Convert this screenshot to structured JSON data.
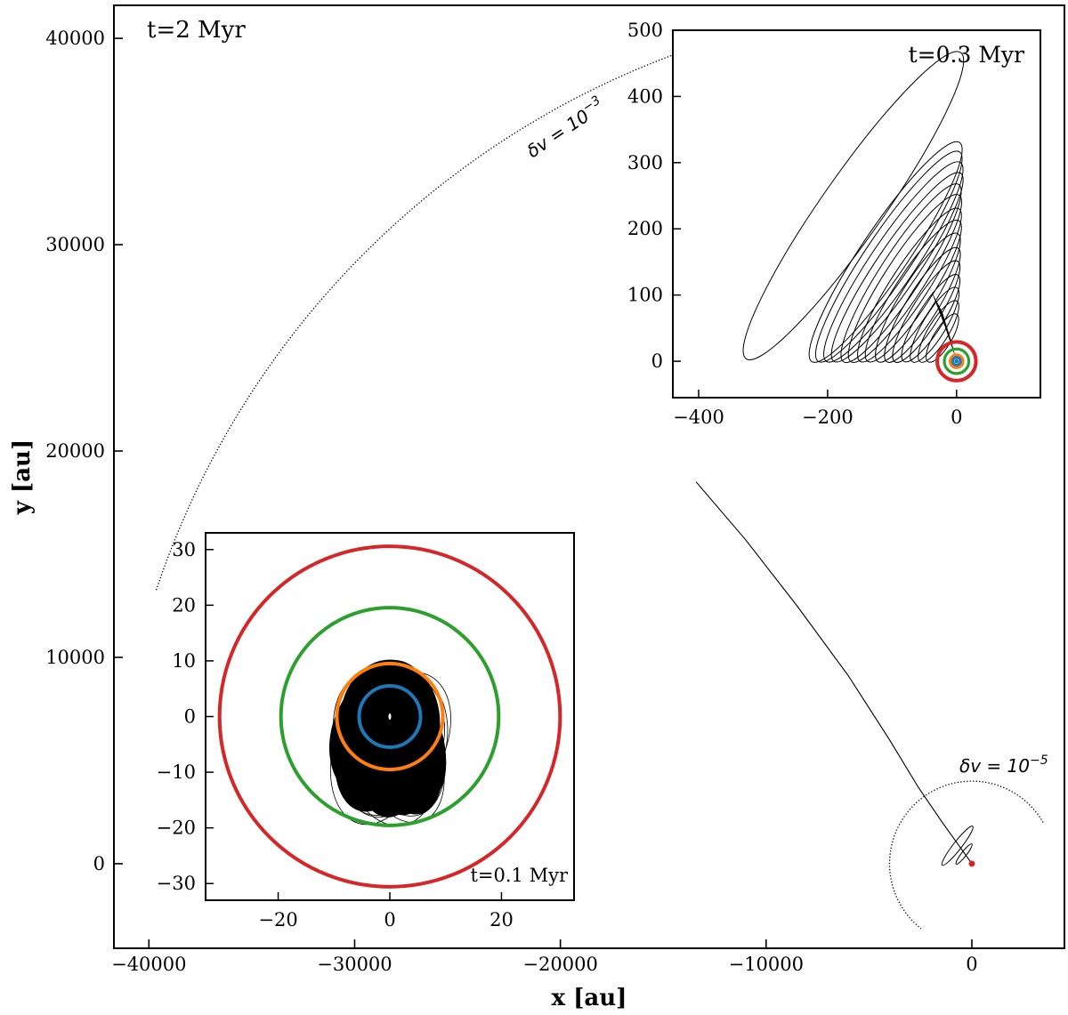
{
  "chart_data": [
    {
      "type": "line",
      "panel": "main",
      "annotation": "t=2 Myr",
      "xlabel": "x [au]",
      "ylabel": "y [au]",
      "xlim": [
        -41700,
        4500
      ],
      "ylim": [
        -4100,
        41600
      ],
      "xticks": [
        -40000,
        -30000,
        -20000,
        -10000,
        0
      ],
      "xtick_labels": [
        "−40000",
        "−30000",
        "−20000",
        "−10000",
        "0"
      ],
      "yticks": [
        0,
        10000,
        20000,
        30000,
        40000
      ],
      "ytick_labels": [
        "0",
        "10000",
        "20000",
        "30000",
        "40000"
      ],
      "dv_large_label": "δv = 10",
      "dv_large_exp": "−3",
      "dv_small_label": "δv = 10",
      "dv_small_exp": "−5",
      "dotted_arc_large": {
        "center": [
          0,
          0
        ],
        "radius": 41800,
        "theta_deg": [
          108.8,
          161.5
        ]
      },
      "dotted_arc_small": {
        "center": [
          0,
          0
        ],
        "radius": 4000,
        "theta_deg": [
          30,
          232
        ]
      },
      "escape_track": [
        [
          -13400,
          18500
        ],
        [
          -11000,
          15700
        ],
        [
          -8500,
          12500
        ],
        [
          -6000,
          9100
        ],
        [
          -4000,
          6000
        ],
        [
          -2600,
          3700
        ],
        [
          -1400,
          1950
        ],
        [
          -500,
          700
        ],
        [
          0,
          0
        ]
      ],
      "loop_outer": {
        "center": [
          -700,
          870
        ],
        "a": 1200,
        "b": 200,
        "angle_deg": -52
      },
      "loop_inner": {
        "center": [
          -380,
          470
        ],
        "a": 620,
        "b": 120,
        "angle_deg": -52
      },
      "origin_color": "#d62728"
    },
    {
      "type": "line",
      "panel": "inset_top",
      "annotation": "t=0.3 Myr",
      "xlim": [
        -440,
        130
      ],
      "ylim": [
        -55,
        500
      ],
      "xticks": [
        -400,
        -200,
        0
      ],
      "xtick_labels": [
        "−400",
        "−200",
        "0"
      ],
      "yticks": [
        0,
        100,
        200,
        300,
        400,
        500
      ],
      "ytick_labels": [
        "0",
        "100",
        "200",
        "300",
        "400",
        "500"
      ],
      "big_orbit": {
        "center": [
          -160,
          235
        ],
        "a": 290,
        "b": 48,
        "angle_deg": -55
      },
      "orbit_family": [
        {
          "center": [
            -110,
            165
          ],
          "a": 205,
          "b": 37,
          "angle_deg": -56
        },
        {
          "center": [
            -105,
            158
          ],
          "a": 196,
          "b": 36,
          "angle_deg": -56
        },
        {
          "center": [
            -98,
            150
          ],
          "a": 186,
          "b": 35,
          "angle_deg": -56
        },
        {
          "center": [
            -92,
            142
          ],
          "a": 176,
          "b": 33,
          "angle_deg": -56
        },
        {
          "center": [
            -86,
            133
          ],
          "a": 164,
          "b": 32,
          "angle_deg": -57
        },
        {
          "center": [
            -80,
            125
          ],
          "a": 154,
          "b": 31,
          "angle_deg": -57
        },
        {
          "center": [
            -73,
            115
          ],
          "a": 141,
          "b": 29,
          "angle_deg": -57
        },
        {
          "center": [
            -67,
            106
          ],
          "a": 130,
          "b": 28,
          "angle_deg": -57
        },
        {
          "center": [
            -60,
            96
          ],
          "a": 117,
          "b": 26,
          "angle_deg": -58
        },
        {
          "center": [
            -53,
            85
          ],
          "a": 104,
          "b": 24,
          "angle_deg": -58
        },
        {
          "center": [
            -47,
            75
          ],
          "a": 92,
          "b": 22,
          "angle_deg": -58
        },
        {
          "center": [
            -40,
            65
          ],
          "a": 79,
          "b": 20,
          "angle_deg": -58
        },
        {
          "center": [
            -34,
            55
          ],
          "a": 67,
          "b": 18,
          "angle_deg": -59
        },
        {
          "center": [
            -28,
            45
          ],
          "a": 55,
          "b": 16,
          "angle_deg": -59
        },
        {
          "center": [
            -22,
            35
          ],
          "a": 43,
          "b": 14,
          "angle_deg": -59
        }
      ],
      "rings": [
        {
          "radius": 30,
          "color": "#d62728"
        },
        {
          "radius": 19,
          "color": "#2ca02c"
        },
        {
          "radius": 10,
          "color": "#ff7f0e"
        },
        {
          "radius": 6,
          "color": "#1f77b4"
        }
      ]
    },
    {
      "type": "line",
      "panel": "inset_bottom",
      "annotation": "t=0.1 Myr",
      "xlim": [
        -33,
        33
      ],
      "ylim": [
        -33,
        33
      ],
      "xticks": [
        -20,
        0,
        20
      ],
      "xtick_labels": [
        "−20",
        "0",
        "20"
      ],
      "yticks": [
        -30,
        -20,
        -10,
        0,
        10,
        20,
        30
      ],
      "ytick_labels": [
        "−30",
        "−20",
        "−10",
        "0",
        "10",
        "20",
        "30"
      ],
      "rings": [
        {
          "radius": 30.5,
          "color": "#d62728"
        },
        {
          "radius": 19.5,
          "color": "#2ca02c"
        },
        {
          "radius": 9.5,
          "color": "#ff7f0e"
        },
        {
          "radius": 5.5,
          "color": "#1f77b4"
        }
      ],
      "blob_loops": [
        {
          "center": [
            -0.3,
            -2.5
          ],
          "a": 8.3,
          "b": 12.6,
          "angle_deg": 8
        },
        {
          "center": [
            0.8,
            -4.5
          ],
          "a": 7.6,
          "b": 13.2,
          "angle_deg": -10
        },
        {
          "center": [
            -1.5,
            -3.2
          ],
          "a": 8.8,
          "b": 12.1,
          "angle_deg": 20
        },
        {
          "center": [
            1.6,
            -3.6
          ],
          "a": 7.4,
          "b": 12.9,
          "angle_deg": -22
        },
        {
          "center": [
            0.2,
            -5.2
          ],
          "a": 6.8,
          "b": 12.8,
          "angle_deg": 3
        },
        {
          "center": [
            -2.4,
            -5.2
          ],
          "a": 7.0,
          "b": 12.0,
          "angle_deg": 14
        },
        {
          "center": [
            2.6,
            -5.8
          ],
          "a": 6.4,
          "b": 11.9,
          "angle_deg": -14
        },
        {
          "center": [
            0.0,
            -1.2
          ],
          "a": 8.9,
          "b": 11.3,
          "angle_deg": 0
        }
      ]
    }
  ]
}
